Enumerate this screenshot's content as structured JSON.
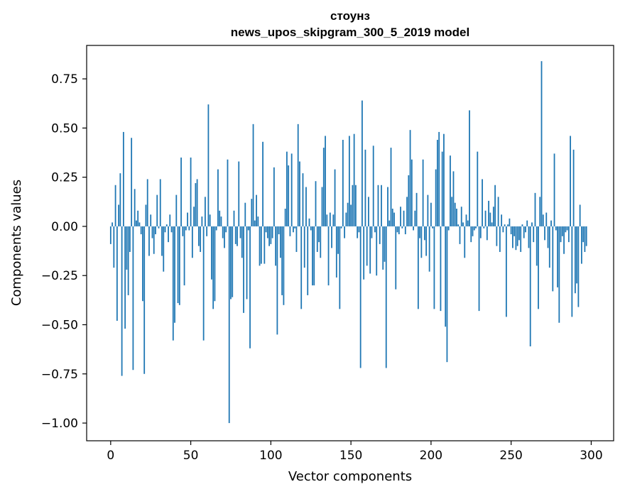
{
  "chart_data": {
    "type": "bar",
    "title": "стоунз",
    "subtitle": "news_upos_skipgram_300_5_2019 model",
    "xlabel": "Vector components",
    "ylabel": "Components values",
    "xlim": [
      -15,
      314
    ],
    "ylim": [
      -1.09,
      0.92
    ],
    "xticks": [
      0,
      50,
      100,
      150,
      200,
      250,
      300
    ],
    "xtick_labels": [
      "0",
      "50",
      "100",
      "150",
      "200",
      "250",
      "300"
    ],
    "yticks": [
      0.75,
      0.5,
      0.25,
      0.0,
      -0.25,
      -0.5,
      -0.75,
      -1.0
    ],
    "ytick_labels": [
      "0.75",
      "0.50",
      "0.25",
      "0.00",
      "−0.25",
      "−0.50",
      "−0.75",
      "−1.00"
    ],
    "bar_color": "#1f77b4",
    "grid": false,
    "series": [
      {
        "name": "стоунз",
        "values": [
          -0.09,
          0.02,
          -0.21,
          0.21,
          -0.48,
          0.11,
          0.27,
          -0.76,
          0.48,
          -0.52,
          -0.22,
          -0.35,
          -0.13,
          0.45,
          -0.73,
          0.19,
          0.03,
          0.08,
          0.02,
          -0.04,
          -0.38,
          -0.75,
          0.11,
          0.24,
          -0.15,
          0.06,
          -0.06,
          -0.14,
          -0.04,
          0.16,
          -0.01,
          0.24,
          -0.15,
          -0.23,
          -0.03,
          0.01,
          -0.08,
          0.06,
          -0.03,
          -0.58,
          -0.49,
          0.16,
          -0.39,
          -0.4,
          0.35,
          -0.05,
          -0.3,
          -0.02,
          0.07,
          -0.02,
          0.35,
          -0.16,
          0.1,
          0.22,
          0.24,
          -0.1,
          -0.13,
          0.05,
          -0.58,
          0.15,
          -0.05,
          0.62,
          0.06,
          -0.27,
          -0.42,
          -0.38,
          -0.02,
          0.29,
          0.08,
          0.05,
          -0.06,
          -0.11,
          -0.03,
          0.34,
          -1.0,
          -0.37,
          -0.36,
          0.08,
          -0.09,
          -0.1,
          0.33,
          -0.06,
          -0.16,
          -0.44,
          0.12,
          -0.37,
          -0.02,
          -0.62,
          0.14,
          0.52,
          0.03,
          0.16,
          0.05,
          -0.2,
          -0.19,
          0.43,
          -0.19,
          -0.03,
          -0.06,
          -0.1,
          -0.09,
          -0.06,
          0.3,
          -0.2,
          -0.55,
          -0.04,
          -0.16,
          -0.35,
          -0.4,
          0.09,
          0.38,
          0.31,
          -0.05,
          0.37,
          -0.03,
          -0.01,
          -0.13,
          0.52,
          0.33,
          -0.42,
          0.27,
          -0.21,
          0.2,
          -0.35,
          0.04,
          -0.02,
          -0.3,
          -0.3,
          0.23,
          -0.13,
          -0.08,
          -0.16,
          0.2,
          0.4,
          0.46,
          0.06,
          -0.3,
          0.07,
          -0.11,
          0.06,
          0.29,
          -0.26,
          -0.14,
          -0.42,
          -0.01,
          0.44,
          -0.06,
          0.07,
          0.12,
          0.46,
          0.11,
          0.21,
          0.47,
          0.21,
          -0.06,
          -0.03,
          -0.72,
          0.64,
          -0.27,
          0.39,
          -0.2,
          0.15,
          -0.24,
          -0.06,
          0.41,
          -0.03,
          -0.25,
          0.21,
          -0.09,
          0.21,
          -0.22,
          -0.18,
          -0.72,
          0.2,
          0.03,
          0.4,
          0.09,
          0.07,
          -0.32,
          -0.03,
          -0.04,
          0.1,
          -0.01,
          0.08,
          -0.04,
          0.15,
          0.26,
          0.49,
          0.34,
          -0.02,
          0.08,
          0.17,
          -0.42,
          -0.06,
          -0.16,
          0.34,
          -0.07,
          -0.15,
          0.16,
          -0.23,
          0.12,
          -0.01,
          -0.42,
          0.29,
          0.44,
          0.48,
          -0.43,
          0.38,
          0.47,
          -0.51,
          -0.69,
          -0.02,
          0.36,
          0.15,
          0.28,
          0.12,
          0.09,
          0.01,
          -0.09,
          0.1,
          0.02,
          -0.16,
          0.06,
          0.03,
          0.59,
          -0.08,
          -0.05,
          -0.02,
          -0.01,
          0.38,
          -0.43,
          -0.06,
          0.24,
          -0.01,
          0.08,
          -0.07,
          0.13,
          0.07,
          0.02,
          0.1,
          0.21,
          -0.1,
          0.15,
          -0.13,
          0.06,
          -0.03,
          0.01,
          -0.46,
          0.01,
          0.04,
          -0.04,
          -0.11,
          -0.05,
          -0.12,
          -0.1,
          -0.07,
          -0.13,
          0.01,
          -0.06,
          -0.03,
          0.03,
          -0.11,
          -0.61,
          0.02,
          -0.08,
          0.17,
          -0.2,
          -0.42,
          0.15,
          0.84,
          0.06,
          -0.07,
          0.07,
          -0.11,
          -0.21,
          0.03,
          -0.33,
          0.37,
          -0.02,
          -0.31,
          -0.49,
          -0.08,
          -0.05,
          -0.14,
          -0.03,
          -0.02,
          -0.08,
          0.46,
          -0.46,
          0.39,
          -0.34,
          -0.29,
          -0.41,
          0.11,
          -0.19,
          -0.08,
          -0.13,
          -0.1
        ]
      }
    ]
  }
}
